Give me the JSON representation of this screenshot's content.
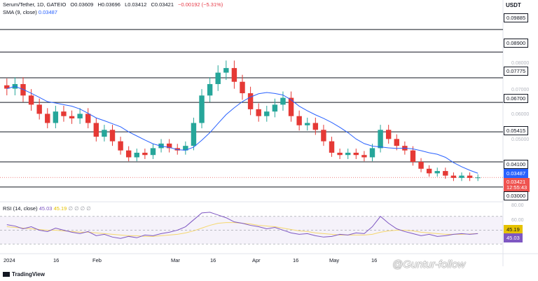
{
  "header": {
    "symbol": "Serum/Tether, 1D, GATEIO",
    "open": "O0.03609",
    "high": "H0.03696",
    "low": "L0.03412",
    "close": "C0.03421",
    "change": "−0.00192 (−5.31%)",
    "sma": "SMA (9, close)",
    "sma_value": "0.03487"
  },
  "rsi_header": {
    "name": "RSI (14, close)",
    "value": "45.03",
    "ma_value": "45.19",
    "extras": "∅ ∅ ∅ ∅"
  },
  "currency": "USDT",
  "price_labels": {
    "l1": "0.09885",
    "l2": "0.08900",
    "l3": "0.07775",
    "l4": "0.06700",
    "l5": "0.05415",
    "l6": "0.04100",
    "sma": "0.03487",
    "current": "0.03421",
    "countdown": "12:55:43",
    "l7": "0.03000"
  },
  "grid_ticks": {
    "t1": "0.08000",
    "t2": "0.07000",
    "t3": "0.06000",
    "t4": "0.05000"
  },
  "rsi_labels": {
    "r80": "80.00",
    "r60": "60.00",
    "ma": "45.19",
    "rsi": "45.03"
  },
  "x_axis": [
    "2024",
    "16",
    "Feb",
    "Mar",
    "16",
    "Apr",
    "16",
    "May",
    "16"
  ],
  "branding": "TradingView",
  "watermark": "@Guntur-follow",
  "colors": {
    "up": "#26a69a",
    "down": "#e53935",
    "sma": "#2962ff",
    "rsi": "#7e57c2",
    "rsi_ma": "#f5d76e"
  },
  "chart_data": [
    {
      "type": "candlestick",
      "title": "Serum/Tether, 1D, GATEIO",
      "xlabel": "",
      "ylabel": "USDT",
      "ylim": [
        0.026,
        0.105
      ],
      "horizontal_levels": [
        0.09885,
        0.089,
        0.07775,
        0.067,
        0.05415,
        0.041,
        0.03
      ],
      "x": [
        "2024",
        "16",
        "Feb",
        "Mar",
        "16",
        "Apr",
        "16",
        "May",
        "16"
      ],
      "close_series": [
        0.073,
        0.075,
        0.07,
        0.066,
        0.062,
        0.058,
        0.063,
        0.061,
        0.06,
        0.062,
        0.058,
        0.052,
        0.055,
        0.05,
        0.046,
        0.043,
        0.045,
        0.044,
        0.047,
        0.049,
        0.047,
        0.046,
        0.048,
        0.058,
        0.07,
        0.075,
        0.08,
        0.082,
        0.076,
        0.071,
        0.064,
        0.061,
        0.063,
        0.066,
        0.069,
        0.061,
        0.057,
        0.058,
        0.055,
        0.05,
        0.045,
        0.044,
        0.045,
        0.044,
        0.043,
        0.047,
        0.055,
        0.051,
        0.048,
        0.046,
        0.041,
        0.038,
        0.036,
        0.037,
        0.035,
        0.034,
        0.035,
        0.034,
        0.0342
      ],
      "sma_period": 9,
      "current": 0.03421,
      "sma_last": 0.03487
    },
    {
      "type": "line",
      "title": "RSI (14, close)",
      "ylim": [
        20,
        85
      ],
      "series": [
        {
          "name": "RSI (14, close)",
          "values": [
            58,
            56,
            52,
            55,
            50,
            48,
            53,
            50,
            47,
            45,
            48,
            42,
            44,
            40,
            38,
            41,
            39,
            43,
            42,
            45,
            47,
            50,
            55,
            65,
            75,
            76,
            72,
            68,
            62,
            60,
            57,
            55,
            52,
            54,
            50,
            46,
            44,
            45,
            42,
            40,
            41,
            44,
            43,
            46,
            45,
            55,
            70,
            60,
            52,
            48,
            45,
            42,
            44,
            41,
            42,
            44,
            45,
            44,
            45.03
          ]
        },
        {
          "name": "MA",
          "values": [
            55,
            54,
            53,
            52,
            51,
            50,
            50,
            49,
            48,
            47,
            47,
            46,
            45,
            44,
            43,
            42,
            42,
            41,
            41,
            42,
            43,
            44,
            46,
            49,
            53,
            57,
            60,
            61,
            61,
            60,
            59,
            57,
            56,
            55,
            53,
            51,
            49,
            48,
            46,
            45,
            44,
            43,
            43,
            43,
            43,
            44,
            47,
            49,
            50,
            50,
            49,
            47,
            46,
            45,
            44,
            44,
            44,
            44.5,
            45.19
          ]
        }
      ],
      "levels": [
        80,
        60,
        45.19,
        45.03
      ]
    }
  ]
}
